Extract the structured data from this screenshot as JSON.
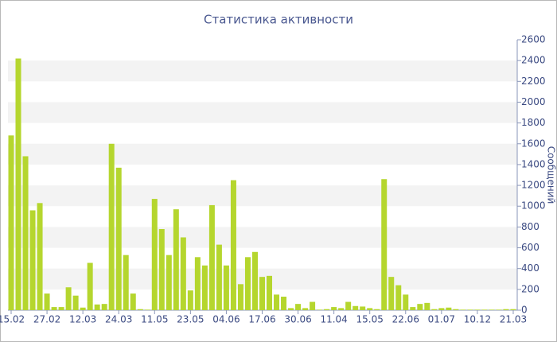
{
  "chart_data": {
    "type": "bar",
    "title": "Статистика активности",
    "y_label": "Сообщений",
    "categories": [
      "15.02",
      null,
      null,
      null,
      null,
      "27.02",
      null,
      null,
      null,
      null,
      "12.03",
      null,
      null,
      null,
      null,
      "24.03",
      null,
      null,
      null,
      null,
      "11.05",
      null,
      null,
      null,
      null,
      "23.05",
      null,
      null,
      null,
      null,
      "04.06",
      null,
      null,
      null,
      null,
      "17.06",
      null,
      null,
      null,
      null,
      "30.06",
      null,
      null,
      null,
      null,
      "11.04",
      null,
      null,
      null,
      null,
      "15.05",
      null,
      null,
      null,
      null,
      "22.06",
      null,
      null,
      null,
      null,
      "01.07",
      null,
      null,
      null,
      null,
      "10.12",
      null,
      null,
      null,
      null,
      "21.03"
    ],
    "values": [
      1680,
      2420,
      1480,
      960,
      1030,
      160,
      30,
      30,
      220,
      140,
      25,
      455,
      55,
      60,
      1600,
      1370,
      530,
      160,
      10,
      5,
      1070,
      780,
      530,
      970,
      700,
      190,
      510,
      430,
      1010,
      630,
      430,
      1250,
      250,
      510,
      560,
      320,
      330,
      150,
      130,
      20,
      60,
      20,
      80,
      5,
      10,
      30,
      20,
      80,
      40,
      35,
      20,
      10,
      1260,
      320,
      240,
      150,
      30,
      60,
      70,
      10,
      20,
      25,
      10,
      5,
      5,
      5,
      5,
      5,
      5,
      10,
      10
    ],
    "color": "#b5d62e",
    "ylim": [
      0,
      2600
    ],
    "yticks": [
      0,
      200,
      400,
      600,
      800,
      1000,
      1200,
      1400,
      1600,
      1800,
      2000,
      2200,
      2400,
      2600
    ],
    "grid": "bands",
    "y_axis_side": "right"
  }
}
